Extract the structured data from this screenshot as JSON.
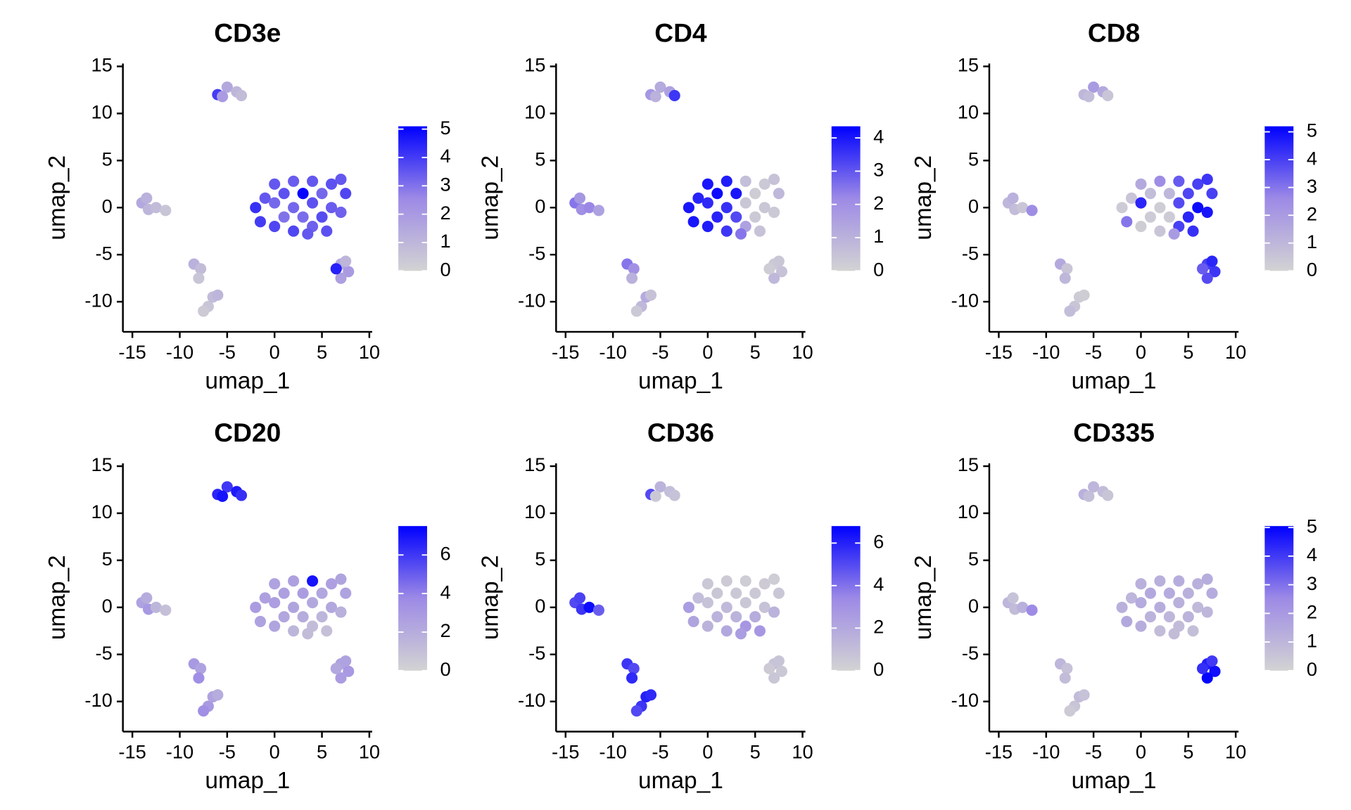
{
  "chart_data": [
    {
      "type": "scatter",
      "title": "CD3e",
      "xlabel": "umap_1",
      "ylabel": "umap_2",
      "x": [
        -6,
        -5,
        -4,
        -3.5,
        -5.5,
        -14,
        -13.3,
        -13.5,
        -12.5,
        -11.5,
        -8.5,
        -7.8,
        -8,
        -7,
        -6.5,
        -7.5,
        -6,
        7,
        7.8,
        7,
        6.5,
        7.5,
        -2,
        -1.5,
        -1,
        0,
        0,
        0,
        1,
        1,
        2,
        2,
        2,
        3,
        3,
        4,
        4,
        4,
        5,
        5,
        6,
        6,
        7,
        7.5,
        7,
        5.5,
        3.5
      ],
      "y": [
        12,
        12.8,
        12.3,
        11.9,
        11.8,
        0.5,
        -0.2,
        1,
        0,
        -0.3,
        -6,
        -6.5,
        -7.5,
        -10.5,
        -9.5,
        -11,
        -9.3,
        -6,
        -6.8,
        -7.5,
        -6.5,
        -5.7,
        0,
        -1.5,
        1,
        -2,
        0.5,
        2.5,
        -1,
        1.5,
        -2.5,
        0,
        2.8,
        -1,
        1.5,
        -2,
        0.5,
        2.8,
        -1,
        1.5,
        0,
        2.5,
        3,
        1.5,
        -0.5,
        -2.5,
        -2.8
      ],
      "values": [
        4,
        1.5,
        1,
        0.8,
        2,
        1.5,
        1,
        1.2,
        0.8,
        0.5,
        1.2,
        0.8,
        0.5,
        0.5,
        0.8,
        0.3,
        1,
        1.5,
        2,
        1.8,
        4.5,
        1,
        4.2,
        4,
        3.5,
        3.8,
        3.2,
        3.5,
        3,
        3.6,
        3.8,
        3.2,
        3.4,
        3.1,
        5,
        3.3,
        3.6,
        3.5,
        3.7,
        3.2,
        3.4,
        3.6,
        3.5,
        3.8,
        3.3,
        3.6,
        3.5
      ],
      "xlim": [
        -16,
        10.3
      ],
      "ylim": [
        -13.2,
        15.3
      ],
      "xticks": [
        -15,
        -10,
        -5,
        0,
        5,
        10
      ],
      "yticks": [
        -10,
        -5,
        0,
        5,
        10,
        15
      ],
      "clim": [
        0,
        5.1
      ],
      "cticks": [
        0,
        1,
        2,
        3,
        4,
        5
      ],
      "colors": [
        "#d3d3d3",
        "#9d8ae6",
        "#0000ff"
      ]
    },
    {
      "type": "scatter",
      "title": "CD4",
      "xlabel": "umap_1",
      "ylabel": "umap_2",
      "x": [
        -6,
        -5,
        -4,
        -3.5,
        -5.5,
        -14,
        -13.3,
        -13.5,
        -12.5,
        -11.5,
        -8.5,
        -7.8,
        -8,
        -7,
        -6.5,
        -7.5,
        -6,
        7,
        7.8,
        7,
        6.5,
        7.5,
        -2,
        -1.5,
        -1,
        0,
        0,
        0,
        1,
        1,
        2,
        2,
        2,
        3,
        3,
        4,
        4,
        4,
        5,
        5,
        6,
        6,
        7,
        7.5,
        7,
        5.5,
        3.5
      ],
      "y": [
        12,
        12.8,
        12.3,
        11.9,
        11.8,
        0.5,
        -0.2,
        1,
        0,
        -0.3,
        -6,
        -6.5,
        -7.5,
        -10.5,
        -9.5,
        -11,
        -9.3,
        -6,
        -6.8,
        -7.5,
        -6.5,
        -5.7,
        0,
        -1.5,
        1,
        -2,
        0.5,
        2.5,
        -1,
        1.5,
        -2.5,
        0,
        2.8,
        -1,
        1.5,
        -2,
        0.5,
        2.8,
        -1,
        1.5,
        0,
        2.5,
        3,
        1.5,
        -0.5,
        -2.5,
        -2.8
      ],
      "values": [
        1.8,
        1.2,
        1.5,
        3.5,
        1,
        2.5,
        2,
        1.8,
        2.2,
        1.5,
        2.5,
        2,
        1,
        0.8,
        1.2,
        0.3,
        0.5,
        0.3,
        0.5,
        0.8,
        0.2,
        0.4,
        4,
        4,
        3.8,
        3.9,
        3.7,
        4,
        3.8,
        4.2,
        3.5,
        3.6,
        3.9,
        3.2,
        4,
        1.5,
        0.4,
        0.6,
        0.3,
        0.2,
        0.4,
        0.3,
        0.5,
        0.8,
        0.3,
        0.5,
        2.5
      ],
      "xlim": [
        -16,
        10.3
      ],
      "ylim": [
        -13.2,
        15.3
      ],
      "xticks": [
        -15,
        -10,
        -5,
        0,
        5,
        10
      ],
      "yticks": [
        -10,
        -5,
        0,
        5,
        10,
        15
      ],
      "clim": [
        0,
        4.35
      ],
      "cticks": [
        0,
        1,
        2,
        3,
        4
      ],
      "colors": [
        "#d3d3d3",
        "#9d8ae6",
        "#0000ff"
      ]
    },
    {
      "type": "scatter",
      "title": "CD8",
      "xlabel": "umap_1",
      "ylabel": "umap_2",
      "x": [
        -6,
        -5,
        -4,
        -3.5,
        -5.5,
        -14,
        -13.3,
        -13.5,
        -12.5,
        -11.5,
        -8.5,
        -7.8,
        -8,
        -7,
        -6.5,
        -7.5,
        -6,
        7,
        7.8,
        7,
        6.5,
        7.5,
        -2,
        -1.5,
        -1,
        0,
        0,
        0,
        1,
        1,
        2,
        2,
        2,
        3,
        3,
        4,
        4,
        4,
        5,
        5,
        6,
        6,
        7,
        7.5,
        7,
        5.5,
        3.5
      ],
      "y": [
        12,
        12.8,
        12.3,
        11.9,
        11.8,
        0.5,
        -0.2,
        1,
        0,
        -0.3,
        -6,
        -6.5,
        -7.5,
        -10.5,
        -9.5,
        -11,
        -9.3,
        -6,
        -6.8,
        -7.5,
        -6.5,
        -5.7,
        0,
        -1.5,
        1,
        -2,
        0.5,
        2.5,
        -1,
        1.5,
        -2.5,
        0,
        2.8,
        -1,
        1.5,
        -2,
        0.5,
        2.8,
        -1,
        1.5,
        0,
        2.5,
        3,
        1.5,
        -0.5,
        -2.5,
        -2.8
      ],
      "values": [
        1,
        2,
        1.5,
        0.5,
        0.8,
        1,
        0.8,
        1.2,
        0.5,
        2.5,
        1.5,
        0.5,
        1,
        0.5,
        0.3,
        0.8,
        0.2,
        4,
        4.2,
        3.8,
        3.5,
        4.5,
        0.3,
        3,
        0.5,
        0.2,
        4.5,
        1.5,
        0.3,
        0.8,
        0.5,
        0.2,
        2.5,
        0.3,
        1,
        4,
        3.8,
        3.5,
        4.5,
        3.9,
        5,
        4,
        4.2,
        4,
        4.8,
        4.3,
        2
      ],
      "xlim": [
        -16,
        10.3
      ],
      "ylim": [
        -13.2,
        15.3
      ],
      "xticks": [
        -15,
        -10,
        -5,
        0,
        5,
        10
      ],
      "yticks": [
        -10,
        -5,
        0,
        5,
        10,
        15
      ],
      "clim": [
        0,
        5.2
      ],
      "cticks": [
        0,
        1,
        2,
        3,
        4,
        5
      ],
      "colors": [
        "#d3d3d3",
        "#9d8ae6",
        "#0000ff"
      ]
    },
    {
      "type": "scatter",
      "title": "CD20",
      "xlabel": "umap_1",
      "ylabel": "umap_2",
      "x": [
        -6,
        -5,
        -4,
        -3.5,
        -5.5,
        -14,
        -13.3,
        -13.5,
        -12.5,
        -11.5,
        -8.5,
        -7.8,
        -8,
        -7,
        -6.5,
        -7.5,
        -6,
        7,
        7.8,
        7,
        6.5,
        7.5,
        -2,
        -1.5,
        -1,
        0,
        0,
        0,
        1,
        1,
        2,
        2,
        2,
        3,
        3,
        4,
        4,
        4,
        5,
        5,
        6,
        6,
        7,
        7.5,
        7,
        5.5,
        3.5
      ],
      "y": [
        12,
        12.8,
        12.3,
        11.9,
        11.8,
        0.5,
        -0.2,
        1,
        0,
        -0.3,
        -6,
        -6.5,
        -7.5,
        -10.5,
        -9.5,
        -11,
        -9.3,
        -6,
        -6.8,
        -7.5,
        -6.5,
        -5.7,
        0,
        -1.5,
        1,
        -2,
        0.5,
        2.5,
        -1,
        1.5,
        -2.5,
        0,
        2.8,
        -1,
        1.5,
        -2,
        0.5,
        2.8,
        -1,
        1.5,
        0,
        2.5,
        3,
        1.5,
        -0.5,
        -2.5,
        -2.8
      ],
      "values": [
        6.5,
        6,
        6.8,
        6.2,
        7,
        2.5,
        3,
        2,
        1.5,
        1,
        3,
        2.5,
        3.5,
        3,
        2.5,
        3.5,
        2,
        2.5,
        3,
        2.8,
        2.2,
        2.5,
        2.8,
        2.5,
        2.6,
        2.4,
        2.7,
        2.5,
        2.3,
        2.6,
        1.5,
        2.4,
        2.6,
        2,
        2.8,
        1.2,
        2.2,
        7,
        1.5,
        2.3,
        2.2,
        2.6,
        2.4,
        2.5,
        1.8,
        1,
        1.2
      ],
      "xlim": [
        -16,
        10.3
      ],
      "ylim": [
        -13.2,
        15.3
      ],
      "xticks": [
        -15,
        -10,
        -5,
        0,
        5,
        10
      ],
      "yticks": [
        -10,
        -5,
        0,
        5,
        10,
        15
      ],
      "clim": [
        0,
        7.5
      ],
      "cticks": [
        0,
        2,
        4,
        6
      ],
      "colors": [
        "#d3d3d3",
        "#9d8ae6",
        "#0000ff"
      ]
    },
    {
      "type": "scatter",
      "title": "CD36",
      "xlabel": "umap_1",
      "ylabel": "umap_2",
      "x": [
        -6,
        -5,
        -4,
        -3.5,
        -5.5,
        -14,
        -13.3,
        -13.5,
        -12.5,
        -11.5,
        -8.5,
        -7.8,
        -8,
        -7,
        -6.5,
        -7.5,
        -6,
        7,
        7.8,
        7,
        6.5,
        7.5,
        -2,
        -1.5,
        -1,
        0,
        0,
        0,
        1,
        1,
        2,
        2,
        2,
        3,
        3,
        4,
        4,
        4,
        5,
        5,
        6,
        6,
        7,
        7.5,
        7,
        5.5,
        3.5
      ],
      "y": [
        12,
        12.8,
        12.3,
        11.9,
        11.8,
        0.5,
        -0.2,
        1,
        0,
        -0.3,
        -6,
        -6.5,
        -7.5,
        -10.5,
        -9.5,
        -11,
        -9.3,
        -6,
        -6.8,
        -7.5,
        -6.5,
        -5.7,
        0,
        -1.5,
        1,
        -2,
        0.5,
        2.5,
        -1,
        1.5,
        -2.5,
        0,
        2.8,
        -1,
        1.5,
        -2,
        0.5,
        2.8,
        -1,
        1.5,
        0,
        2.5,
        3,
        1.5,
        -0.5,
        -2.5,
        -2.8
      ],
      "values": [
        5,
        1.5,
        1,
        0.8,
        0.5,
        5,
        5.5,
        5.2,
        6.5,
        4.5,
        5.5,
        5,
        5.8,
        5.5,
        6,
        5,
        5.8,
        0.8,
        0.5,
        0.6,
        0.4,
        0.7,
        2.5,
        2.2,
        1,
        1.5,
        0.8,
        0.5,
        1.5,
        0.6,
        2,
        1.2,
        0.4,
        1.5,
        0.5,
        2.8,
        0.6,
        0.3,
        1.8,
        0.5,
        0.8,
        0.4,
        0.3,
        0.6,
        1.5,
        2.8,
        2.5
      ],
      "xlim": [
        -16,
        10.3
      ],
      "ylim": [
        -13.2,
        15.3
      ],
      "xticks": [
        -15,
        -10,
        -5,
        0,
        5,
        10
      ],
      "yticks": [
        -10,
        -5,
        0,
        5,
        10,
        15
      ],
      "clim": [
        0,
        6.8
      ],
      "cticks": [
        0,
        2,
        4,
        6
      ],
      "colors": [
        "#d3d3d3",
        "#9d8ae6",
        "#0000ff"
      ]
    },
    {
      "type": "scatter",
      "title": "CD335",
      "xlabel": "umap_1",
      "ylabel": "umap_2",
      "x": [
        -6,
        -5,
        -4,
        -3.5,
        -5.5,
        -14,
        -13.3,
        -13.5,
        -12.5,
        -11.5,
        -8.5,
        -7.8,
        -8,
        -7,
        -6.5,
        -7.5,
        -6,
        7,
        7.8,
        7,
        6.5,
        7.5,
        -2,
        -1.5,
        -1,
        0,
        0,
        0,
        1,
        1,
        2,
        2,
        2,
        3,
        3,
        4,
        4,
        4,
        5,
        5,
        6,
        6,
        7,
        7.5,
        7,
        5.5,
        3.5
      ],
      "y": [
        12,
        12.8,
        12.3,
        11.9,
        11.8,
        0.5,
        -0.2,
        1,
        0,
        -0.3,
        -6,
        -6.5,
        -7.5,
        -10.5,
        -9.5,
        -11,
        -9.3,
        -6,
        -6.8,
        -7.5,
        -6.5,
        -5.7,
        0,
        -1.5,
        1,
        -2,
        0.5,
        2.5,
        -1,
        1.5,
        -2.5,
        0,
        2.8,
        -1,
        1.5,
        -2,
        0.5,
        2.8,
        -1,
        1.5,
        0,
        2.5,
        3,
        1.5,
        -0.5,
        -2.5,
        -2.8
      ],
      "values": [
        1.2,
        1,
        0.8,
        0.5,
        0.7,
        1,
        0.8,
        0.6,
        1.2,
        2.5,
        1,
        0.6,
        0.8,
        0.5,
        0.8,
        0.3,
        0.6,
        4.5,
        4.8,
        5,
        4.2,
        4,
        1.2,
        1.5,
        1,
        1.3,
        1.4,
        1.2,
        1.1,
        1.5,
        0.8,
        1.3,
        1.2,
        1,
        1.4,
        0.8,
        1.2,
        1.3,
        1.1,
        1.2,
        0.9,
        1.2,
        1.3,
        1.4,
        1,
        0.7,
        0.8
      ],
      "xlim": [
        -16,
        10.3
      ],
      "ylim": [
        -13.2,
        15.3
      ],
      "xticks": [
        -15,
        -10,
        -5,
        0,
        5,
        10
      ],
      "yticks": [
        -10,
        -5,
        0,
        5,
        10,
        15
      ],
      "clim": [
        0,
        5.05
      ],
      "cticks": [
        0,
        1,
        2,
        3,
        4,
        5
      ],
      "colors": [
        "#d3d3d3",
        "#9d8ae6",
        "#0000ff"
      ]
    }
  ]
}
